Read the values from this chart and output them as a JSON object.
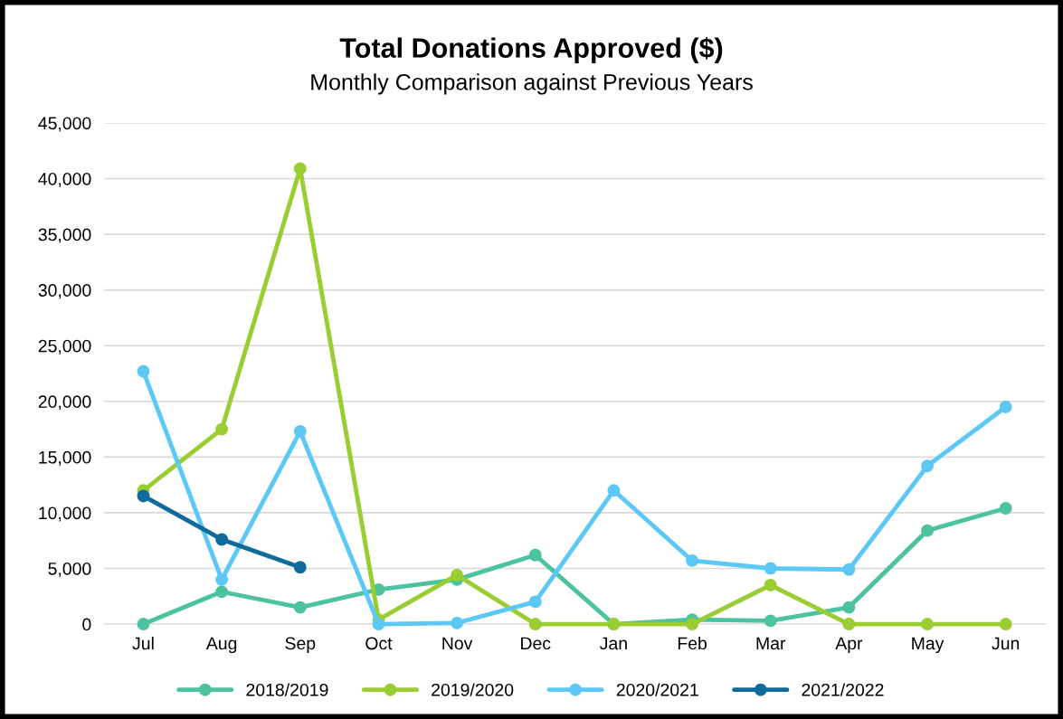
{
  "chart_data": {
    "type": "line",
    "title": "Total Donations Approved ($)",
    "subtitle": "Monthly Comparison against Previous Years",
    "categories": [
      "Jul",
      "Aug",
      "Sep",
      "Oct",
      "Nov",
      "Dec",
      "Jan",
      "Feb",
      "Mar",
      "Apr",
      "May",
      "Jun"
    ],
    "series": [
      {
        "name": "2018/2019",
        "color": "#4cc2a0",
        "values": [
          0,
          2900,
          1500,
          3100,
          4000,
          6200,
          0,
          400,
          300,
          1500,
          8400,
          10400
        ]
      },
      {
        "name": "2019/2020",
        "color": "#9acd32",
        "values": [
          12000,
          17500,
          40900,
          400,
          4400,
          0,
          0,
          0,
          3500,
          0,
          0,
          0
        ]
      },
      {
        "name": "2020/2021",
        "color": "#5bc8f5",
        "values": [
          22700,
          4000,
          17300,
          0,
          100,
          2000,
          12000,
          5700,
          5000,
          4900,
          14200,
          19500
        ]
      },
      {
        "name": "2021/2022",
        "color": "#0f6b9a",
        "values": [
          11500,
          7600,
          5100,
          null,
          null,
          null,
          null,
          null,
          null,
          null,
          null,
          null
        ]
      }
    ],
    "ylim": [
      0,
      45000
    ],
    "yticks": [
      {
        "value": 0,
        "label": "0"
      },
      {
        "value": 5000,
        "label": "5,000"
      },
      {
        "value": 10000,
        "label": "10,000"
      },
      {
        "value": 15000,
        "label": "15,000"
      },
      {
        "value": 20000,
        "label": "20,000"
      },
      {
        "value": 25000,
        "label": "25,000"
      },
      {
        "value": 30000,
        "label": "30,000"
      },
      {
        "value": 35000,
        "label": "35,000"
      },
      {
        "value": 40000,
        "label": "40,000"
      },
      {
        "value": 45000,
        "label": "45,000"
      }
    ],
    "grid": "y",
    "legend": "bottom",
    "marker": "circle",
    "line_style": "solid"
  }
}
